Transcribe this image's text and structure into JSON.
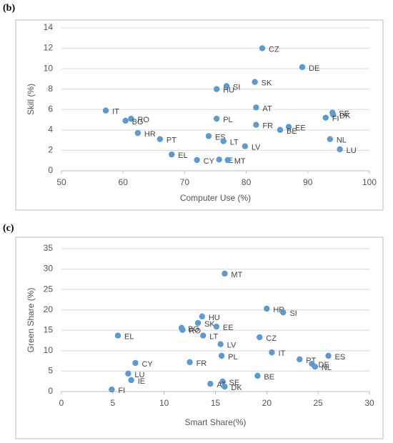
{
  "chart_data": [
    {
      "type": "scatter",
      "panel_label": "(b)",
      "x_label": "Computer Use (%)",
      "y_label": "Skill (%)",
      "xlim": [
        50,
        100
      ],
      "ylim": [
        0,
        14
      ],
      "xticks": [
        50,
        60,
        70,
        80,
        90,
        100
      ],
      "yticks": [
        0,
        2,
        4,
        6,
        8,
        10,
        12,
        14
      ],
      "grid": true,
      "color": "#5b9bd5",
      "labels": [
        "CZ",
        "DE",
        "SK",
        "SI",
        "HU",
        "IT",
        "AT",
        "SE",
        "DK",
        "FI",
        "RO",
        "BG",
        "PL",
        "FR",
        "EE",
        "BE",
        "HR",
        "PT",
        "ES",
        "LT",
        "LV",
        "NL",
        "LU",
        "EL",
        "CY",
        "IE",
        "MT"
      ],
      "x": [
        82.6,
        89.1,
        81.4,
        76.8,
        75.2,
        57.2,
        81.6,
        94.0,
        94.1,
        92.9,
        61.3,
        60.4,
        75.2,
        81.6,
        86.9,
        85.5,
        62.4,
        66.0,
        73.9,
        76.3,
        79.8,
        93.6,
        95.2,
        67.9,
        72.0,
        75.6,
        77.0
      ],
      "y": [
        12.0,
        10.15,
        8.7,
        8.3,
        8.0,
        5.9,
        6.2,
        5.7,
        5.5,
        5.2,
        5.1,
        4.9,
        5.1,
        4.5,
        4.3,
        4.0,
        3.7,
        3.1,
        3.4,
        2.9,
        2.4,
        3.1,
        2.1,
        1.6,
        1.05,
        1.1,
        1.05
      ]
    },
    {
      "type": "scatter",
      "panel_label": "(c)",
      "x_label": "Smart Share(%)",
      "y_label": "Green Share (%)",
      "xlim": [
        0,
        30
      ],
      "ylim": [
        0,
        35
      ],
      "xticks": [
        0,
        5,
        10,
        15,
        20,
        25,
        30
      ],
      "yticks": [
        0,
        5,
        10,
        15,
        20,
        25,
        30,
        35
      ],
      "grid": true,
      "color": "#5b9bd5",
      "labels": [
        "MT",
        "HR",
        "SI",
        "HU",
        "SK",
        "EE",
        "BG",
        "RO",
        "EL",
        "LT",
        "CZ",
        "LV",
        "IT",
        "PL",
        "ES",
        "PT",
        "DE",
        "NL",
        "CY",
        "FR",
        "LU",
        "BE",
        "IE",
        "SE",
        "AT",
        "DK",
        "FI"
      ],
      "x": [
        15.9,
        20.0,
        21.6,
        13.7,
        13.3,
        15.1,
        11.7,
        11.8,
        5.5,
        13.8,
        19.3,
        15.5,
        20.5,
        15.6,
        26.0,
        23.2,
        24.4,
        24.7,
        7.2,
        12.5,
        6.5,
        19.1,
        6.8,
        15.7,
        14.5,
        15.9,
        4.9
      ],
      "y": [
        28.9,
        20.3,
        19.4,
        18.4,
        16.8,
        15.9,
        15.6,
        15.1,
        13.7,
        13.7,
        13.3,
        11.6,
        9.6,
        8.75,
        8.75,
        7.9,
        6.8,
        6.1,
        7.0,
        7.2,
        4.4,
        3.85,
        2.8,
        2.45,
        1.9,
        1.2,
        0.5
      ]
    }
  ]
}
